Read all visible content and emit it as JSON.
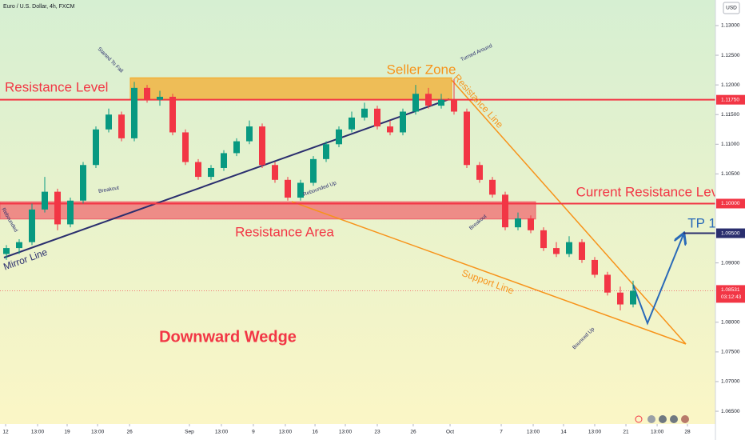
{
  "header": {
    "title": "Euro / U.S. Dollar, 4h, FXCM",
    "currency": "USD"
  },
  "chart_data": {
    "type": "candlestick",
    "open": [
      1.0915,
      1.0925,
      1.0935,
      1.099,
      1.102,
      1.0965,
      1.1005,
      1.1065,
      1.1125,
      1.115,
      1.111,
      1.1195,
      1.1175,
      1.118,
      1.112,
      1.107,
      1.1045,
      1.106,
      1.1085,
      1.1105,
      1.113,
      1.1065,
      1.104,
      1.101,
      1.1035,
      1.1075,
      1.11,
      1.1125,
      1.1145,
      1.116,
      1.113,
      1.112,
      1.1155,
      1.1185,
      1.1165,
      1.1175,
      1.1155,
      1.1065,
      1.104,
      1.1015,
      1.096,
      1.0975,
      1.0955,
      1.0925,
      1.0915,
      1.0935,
      1.0905,
      1.088,
      1.085,
      1.083
    ],
    "high": [
      1.093,
      1.094,
      1.1,
      1.1045,
      1.1025,
      1.101,
      1.107,
      1.113,
      1.116,
      1.1155,
      1.1205,
      1.12,
      1.119,
      1.1185,
      1.1125,
      1.1075,
      1.1065,
      1.109,
      1.111,
      1.114,
      1.1135,
      1.107,
      1.1045,
      1.104,
      1.108,
      1.1105,
      1.113,
      1.1155,
      1.117,
      1.1165,
      1.114,
      1.116,
      1.12,
      1.1195,
      1.1185,
      1.121,
      1.116,
      1.107,
      1.1045,
      1.102,
      1.0985,
      1.098,
      1.096,
      1.0935,
      1.0945,
      1.094,
      1.091,
      1.0885,
      1.086,
      1.087
    ],
    "low": [
      1.0905,
      1.0915,
      1.093,
      1.0985,
      1.0955,
      1.096,
      1.1,
      1.106,
      1.112,
      1.1105,
      1.1105,
      1.117,
      1.1165,
      1.1115,
      1.1065,
      1.104,
      1.104,
      1.1055,
      1.108,
      1.11,
      1.106,
      1.1035,
      1.1005,
      1.1005,
      1.103,
      1.107,
      1.1095,
      1.112,
      1.114,
      1.1125,
      1.1115,
      1.1115,
      1.115,
      1.116,
      1.116,
      1.115,
      1.106,
      1.1035,
      1.101,
      1.0955,
      1.0955,
      1.095,
      1.092,
      1.091,
      1.091,
      1.09,
      1.0875,
      1.0845,
      1.082,
      1.0825
    ],
    "close": [
      1.0925,
      1.0935,
      1.099,
      1.102,
      1.0965,
      1.1005,
      1.1065,
      1.1125,
      1.115,
      1.111,
      1.1195,
      1.1175,
      1.118,
      1.112,
      1.107,
      1.1045,
      1.106,
      1.1085,
      1.1105,
      1.113,
      1.1065,
      1.104,
      1.101,
      1.1035,
      1.1075,
      1.11,
      1.1125,
      1.1145,
      1.116,
      1.113,
      1.112,
      1.1155,
      1.1185,
      1.1165,
      1.1175,
      1.1155,
      1.1065,
      1.104,
      1.1015,
      1.096,
      1.0975,
      1.0955,
      1.0925,
      1.0915,
      1.0935,
      1.0905,
      1.088,
      1.085,
      1.083,
      1.0853
    ],
    "up_color": "#089981",
    "down_color": "#f23645",
    "xlim": [
      0,
      56
    ],
    "ylim": [
      1.06285,
      1.13431
    ],
    "xticks": [
      {
        "value": 0.44,
        "label": "12"
      },
      {
        "value": 2.94,
        "label": "13:00"
      },
      {
        "value": 5.25,
        "label": "19"
      },
      {
        "value": 7.63,
        "label": "13:00"
      },
      {
        "value": 10.13,
        "label": "26"
      },
      {
        "value": 14.81,
        "label": "Sep"
      },
      {
        "value": 17.31,
        "label": "13:00"
      },
      {
        "value": 19.81,
        "label": "9"
      },
      {
        "value": 22.31,
        "label": "13:00"
      },
      {
        "value": 24.63,
        "label": "16"
      },
      {
        "value": 27,
        "label": "13:00"
      },
      {
        "value": 29.5,
        "label": "23"
      },
      {
        "value": 32.31,
        "label": "26"
      },
      {
        "value": 35.19,
        "label": "Oct"
      },
      {
        "value": 39.19,
        "label": "7"
      },
      {
        "value": 41.69,
        "label": "13:00"
      },
      {
        "value": 44.06,
        "label": "14"
      },
      {
        "value": 46.5,
        "label": "13:00"
      },
      {
        "value": 48.94,
        "label": "21"
      },
      {
        "value": 51.38,
        "label": "13:00"
      },
      {
        "value": 53.75,
        "label": "28"
      }
    ],
    "yticks": [
      {
        "value": 1.13,
        "label": "1.13000"
      },
      {
        "value": 1.125,
        "label": "1.12500"
      },
      {
        "value": 1.12,
        "label": "1.12000"
      },
      {
        "value": 1.115,
        "label": "1.11500"
      },
      {
        "value": 1.11,
        "label": "1.11000"
      },
      {
        "value": 1.105,
        "label": "1.10500"
      },
      {
        "value": 1.09,
        "label": "1.09000"
      },
      {
        "value": 1.08,
        "label": "1.08000"
      },
      {
        "value": 1.075,
        "label": "1.07500"
      },
      {
        "value": 1.07,
        "label": "1.07000"
      },
      {
        "value": 1.065,
        "label": "1.06500"
      }
    ],
    "levels": [
      {
        "value": 1.1175,
        "label": "1.11750",
        "color": "#f23645"
      },
      {
        "value": 1.1,
        "label": "1.10000",
        "color": "#f23645"
      },
      {
        "value": 1.095,
        "label": "1.09500",
        "color": "#2a2e6e"
      }
    ],
    "current_price": {
      "value": 1.08531,
      "label": "1.08531",
      "countdown": "03:12:43",
      "color": "#f23645"
    },
    "zones": [
      {
        "name": "Seller Zone",
        "low": 1.1175,
        "high": 1.1212,
        "color": "#f5a623"
      },
      {
        "name": "Resistance Area",
        "low": 1.0974,
        "high": 1.1003,
        "color": "#f0606a"
      }
    ],
    "annotations": [
      "Started To Fall",
      "Turned Around",
      "Resistance Level",
      "Resistance Line",
      "Breakout",
      "Rebounded Up",
      "Rebounded",
      "Mirror Line",
      "Current Resistance Level",
      "TP 1",
      "Breakout",
      "Support Line",
      "Downward Wedge",
      "Bounced Up"
    ]
  }
}
